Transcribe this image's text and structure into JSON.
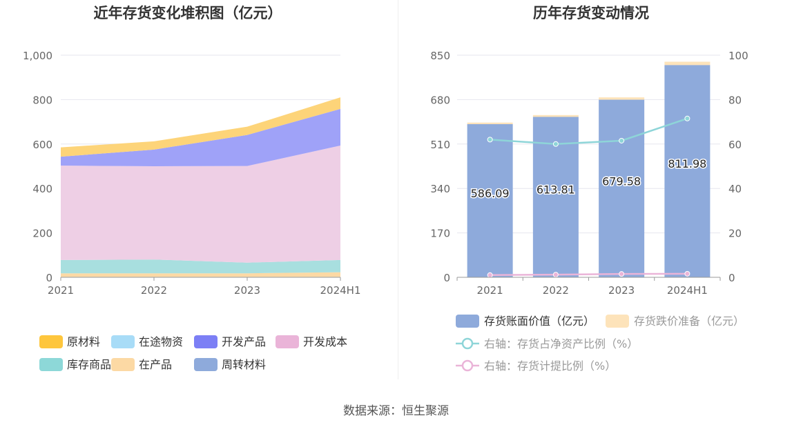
{
  "footer": {
    "source": "数据来源：恒生聚源"
  },
  "chart_data": [
    {
      "type": "area",
      "stacked": true,
      "title": "近年存货变化堆积图（亿元）",
      "categories": [
        "2021",
        "2022",
        "2023",
        "2024H1"
      ],
      "ylim": [
        0,
        1000
      ],
      "yticks": [
        "0",
        "200",
        "400",
        "600",
        "800",
        "1,000"
      ],
      "series": [
        {
          "name": "周转材料",
          "color": "#8eaadb",
          "values": [
            2,
            2,
            2,
            2
          ]
        },
        {
          "name": "在产品",
          "color": "#fcd9a4",
          "values": [
            16,
            16,
            16,
            21
          ]
        },
        {
          "name": "库存商品",
          "color": "#a8dfdf",
          "values": [
            60,
            62,
            48,
            55
          ]
        },
        {
          "name": "在途物资",
          "color": "#a8dcf7",
          "values": [
            0,
            0,
            0,
            0
          ]
        },
        {
          "name": "开发成本",
          "color": "#eecfe5",
          "values": [
            425,
            420,
            435,
            515
          ]
        },
        {
          "name": "开发产品",
          "color": "#9fa2f8",
          "values": [
            40,
            75,
            140,
            165
          ]
        },
        {
          "name": "原材料",
          "color": "#fdd479",
          "values": [
            42,
            37,
            37,
            52
          ]
        }
      ],
      "legend": {
        "position": "bottom",
        "items": [
          {
            "name": "原材料",
            "color": "#fec63d"
          },
          {
            "name": "在途物资",
            "color": "#a8dcf7"
          },
          {
            "name": "开发产品",
            "color": "#7c7ff5"
          },
          {
            "name": "开发成本",
            "color": "#eab4d8"
          },
          {
            "name": "库存商品",
            "color": "#8dd8d8"
          },
          {
            "name": "在产品",
            "color": "#fcd9a4"
          },
          {
            "name": "周转材料",
            "color": "#8eaadb"
          }
        ]
      }
    },
    {
      "type": "bar",
      "title": "历年存货变动情况",
      "categories": [
        "2021",
        "2022",
        "2023",
        "2024H1"
      ],
      "ylim": [
        0,
        850
      ],
      "yticks": [
        "0",
        "170",
        "340",
        "510",
        "680",
        "850"
      ],
      "y2lim": [
        0,
        100
      ],
      "y2ticks": [
        "0",
        "20",
        "40",
        "60",
        "80",
        "100"
      ],
      "series": [
        {
          "name": "存货账面价值（亿元）",
          "color": "#8eaadb",
          "values": [
            586.09,
            613.81,
            679.58,
            811.98
          ],
          "labels": [
            "586.09",
            "613.81",
            "679.58",
            "811.98"
          ]
        },
        {
          "name": "存货跌价准备（亿元）",
          "color": "#fde3ba",
          "values": [
            6,
            7,
            9,
            13
          ]
        },
        {
          "name": "右轴：存货占净资产比例（%）",
          "color": "#8ed5d8",
          "axis": "right",
          "line": true,
          "values": [
            62,
            60,
            61.5,
            71.5
          ]
        },
        {
          "name": "右轴：存货计提比例（%）",
          "color": "#eab4d8",
          "axis": "right",
          "line": true,
          "values": [
            1,
            1.2,
            1.5,
            1.6
          ]
        }
      ]
    }
  ]
}
